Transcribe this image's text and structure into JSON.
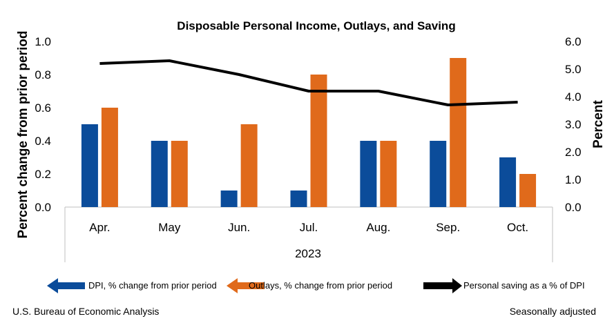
{
  "chart_data": {
    "type": "bar",
    "title": "Disposable Personal Income, Outlays, and Saving",
    "ylabel": "Percent change from prior period",
    "y2label": "Percent",
    "categories": [
      "Apr.",
      "May",
      "Jun.",
      "Jul.",
      "Aug.",
      "Sep.",
      "Oct."
    ],
    "xgroup_label": "2023",
    "ylim": [
      0,
      1.0
    ],
    "y2lim": [
      0,
      6.0
    ],
    "yticks": [
      "0.0",
      "0.2",
      "0.4",
      "0.6",
      "0.8",
      "1.0"
    ],
    "y2ticks": [
      "0.0",
      "1.0",
      "2.0",
      "3.0",
      "4.0",
      "5.0",
      "6.0"
    ],
    "grid": false,
    "legend_position": "bottom",
    "series": [
      {
        "name": "DPI, % change from prior period",
        "type": "bar",
        "axis": "left",
        "color": "#0b4c9a",
        "values": [
          0.5,
          0.4,
          0.1,
          0.1,
          0.4,
          0.4,
          0.3
        ]
      },
      {
        "name": "Outlays, % change from prior period",
        "type": "bar",
        "axis": "left",
        "color": "#e06a1b",
        "values": [
          0.6,
          0.4,
          0.5,
          0.8,
          0.4,
          0.9,
          0.2
        ]
      },
      {
        "name": "Personal saving as a % of DPI",
        "type": "line",
        "axis": "right",
        "color": "#000000",
        "values": [
          5.2,
          5.3,
          4.8,
          4.2,
          4.2,
          3.7,
          3.8
        ]
      }
    ]
  },
  "footer": {
    "source": "U.S. Bureau of Economic Analysis",
    "note": "Seasonally adjusted"
  }
}
